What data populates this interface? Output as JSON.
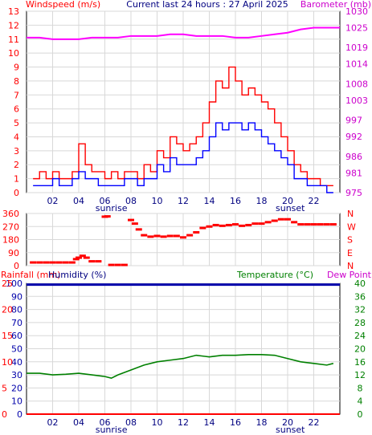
{
  "header": {
    "left": "Windspeed (m/s)",
    "center": "Current last 24 hours : 27 April 2025",
    "right": "Barometer (mb)"
  },
  "panel3_header": {
    "rainfall": "Rainfall (mm)",
    "humidity": "Humidity (%)",
    "temperature": "Temperature (°C)",
    "dewpoint": "Dew Point"
  },
  "x_ticks": [
    "02",
    "04",
    "06",
    "08",
    "10",
    "12",
    "14",
    "16",
    "18",
    "20",
    "22"
  ],
  "sunrise_label": "sunrise",
  "sunset_label": "sunset",
  "colors": {
    "wind": "#ff0000",
    "gust_avg": "#0000ff",
    "barometer": "#ff00ff",
    "temperature": "#008000",
    "humidity": "#0000aa",
    "rainfall": "#ff0000",
    "direction": "#ff0000",
    "grid": "#d8d8d8"
  },
  "chart_data": [
    {
      "type": "line",
      "name": "wind_barometer",
      "x_hours_range": [
        0.5,
        23.5
      ],
      "y_left_ticks": [
        "0",
        "1",
        "2",
        "3",
        "4",
        "5",
        "6",
        "7",
        "8",
        "9",
        "10",
        "11",
        "12",
        "13"
      ],
      "y_right_ticks": [
        "975",
        "981",
        "986",
        "992",
        "997",
        "1003",
        "1008",
        "1014",
        "1019",
        "1025",
        "1030"
      ],
      "ylim_left": [
        0,
        13
      ],
      "ylim_right": [
        975,
        1030
      ],
      "grid": true,
      "series": [
        {
          "key": "gust",
          "x": [
            0.5,
            1,
            1.5,
            2,
            2.5,
            3,
            3.5,
            4,
            4.5,
            5,
            5.5,
            6,
            6.5,
            7,
            7.5,
            8,
            8.5,
            9,
            9.5,
            10,
            10.5,
            11,
            11.5,
            12,
            12.5,
            13,
            13.5,
            14,
            14.5,
            15,
            15.5,
            16,
            16.5,
            17,
            17.5,
            18,
            18.5,
            19,
            19.5,
            20,
            20.5,
            21,
            21.5,
            22,
            22.5,
            23,
            23.5
          ],
          "values": [
            1,
            1.5,
            1,
            1.5,
            1,
            1,
            1.5,
            3.5,
            2,
            1.5,
            1.5,
            1,
            1.5,
            1,
            1.5,
            1.5,
            1,
            2,
            1.5,
            3,
            2.5,
            4,
            3.5,
            3,
            3.5,
            4,
            5,
            6.5,
            8,
            7.5,
            9,
            8,
            7,
            7.5,
            7,
            6.5,
            6,
            5,
            4,
            3,
            2,
            1.5,
            1,
            1,
            0.5,
            0.5,
            0.5
          ]
        },
        {
          "key": "average",
          "x": [
            0.5,
            1,
            1.5,
            2,
            2.5,
            3,
            3.5,
            4,
            4.5,
            5,
            5.5,
            6,
            6.5,
            7,
            7.5,
            8,
            8.5,
            9,
            9.5,
            10,
            10.5,
            11,
            11.5,
            12,
            12.5,
            13,
            13.5,
            14,
            14.5,
            15,
            15.5,
            16,
            16.5,
            17,
            17.5,
            18,
            18.5,
            19,
            19.5,
            20,
            20.5,
            21,
            21.5,
            22,
            22.5,
            23,
            23.5
          ],
          "values": [
            0.5,
            0.5,
            0.5,
            1,
            0.5,
            0.5,
            1,
            1.5,
            1,
            1,
            0.5,
            0.5,
            0.5,
            0.5,
            1,
            1,
            0.5,
            1,
            1,
            2,
            1.5,
            2.5,
            2,
            2,
            2,
            2.5,
            3,
            4,
            5,
            4.5,
            5,
            5,
            4.5,
            5,
            4.5,
            4,
            3.5,
            3,
            2.5,
            2,
            1,
            1,
            0.5,
            0.5,
            0.5,
            0,
            0
          ]
        },
        {
          "key": "barometer",
          "x": [
            0,
            1,
            2,
            3,
            4,
            5,
            6,
            7,
            8,
            9,
            10,
            11,
            12,
            13,
            14,
            15,
            16,
            17,
            18,
            19,
            20,
            21,
            22,
            23,
            24
          ],
          "values": [
            1022,
            1022,
            1021.5,
            1021.5,
            1021.5,
            1022,
            1022,
            1022,
            1022.5,
            1022.5,
            1022.5,
            1023,
            1023,
            1022.5,
            1022.5,
            1022.5,
            1022,
            1022,
            1022.5,
            1023,
            1023.5,
            1024.5,
            1025,
            1025,
            1025
          ]
        }
      ]
    },
    {
      "type": "scatter",
      "name": "wind_direction",
      "y_ticks": [
        "360",
        "270",
        "180",
        "90",
        "0"
      ],
      "y_right_labels": [
        "N",
        "W",
        "S",
        "E",
        "N"
      ],
      "ylim": [
        0,
        360
      ],
      "x": [
        0.5,
        1,
        1.5,
        2,
        2.5,
        3,
        3.5,
        3.8,
        4,
        4.3,
        4.6,
        5,
        5.5,
        6,
        6.2,
        6.5,
        7,
        7.5,
        8,
        8.3,
        8.6,
        9,
        9.5,
        10,
        10.5,
        11,
        11.5,
        12,
        12.5,
        13,
        13.5,
        14,
        14.5,
        15,
        15.5,
        16,
        16.5,
        17,
        17.5,
        18,
        18.5,
        19,
        19.5,
        20,
        20.5,
        21,
        21.5,
        22,
        22.5,
        23,
        23.5
      ],
      "values": [
        22,
        22,
        22,
        22,
        22,
        22,
        22,
        45,
        55,
        68,
        55,
        30,
        30,
        338,
        340,
        5,
        5,
        5,
        315,
        290,
        250,
        210,
        200,
        205,
        200,
        205,
        205,
        195,
        210,
        230,
        260,
        270,
        280,
        275,
        280,
        285,
        275,
        280,
        290,
        290,
        300,
        310,
        320,
        320,
        300,
        285,
        285,
        285,
        285,
        285,
        285
      ]
    },
    {
      "type": "line",
      "name": "temp_humidity_rain",
      "y_left_ticks": [
        "0",
        "10",
        "20",
        "30",
        "40",
        "50",
        "60",
        "70",
        "80",
        "90",
        "100"
      ],
      "y_rain_ticks": [
        "0",
        "5",
        "10",
        "15",
        "20",
        "25"
      ],
      "y_right_ticks": [
        "0",
        "4",
        "8",
        "12",
        "16",
        "20",
        "24",
        "28",
        "32",
        "36",
        "40"
      ],
      "ylim_left": [
        0,
        100
      ],
      "ylim_right": [
        0,
        40
      ],
      "grid": true,
      "series": [
        {
          "key": "temperature",
          "x": [
            0,
            1,
            2,
            3,
            4,
            5,
            6,
            6.5,
            7,
            8,
            9,
            10,
            11,
            12,
            13,
            14,
            15,
            16,
            17,
            18,
            19,
            20,
            21,
            22,
            23,
            23.5
          ],
          "values": [
            12.5,
            12.5,
            12,
            12.2,
            12.5,
            12,
            11.5,
            11,
            12,
            13.5,
            15,
            16,
            16.5,
            17,
            18,
            17.5,
            18,
            18,
            18.2,
            18.2,
            18,
            17,
            16,
            15.5,
            15,
            15.5
          ]
        },
        {
          "key": "humidity",
          "x": [
            0,
            24
          ],
          "values": [
            99,
            99
          ]
        },
        {
          "key": "rainfall",
          "x": [
            0,
            24
          ],
          "values": [
            0,
            0
          ]
        }
      ]
    }
  ]
}
